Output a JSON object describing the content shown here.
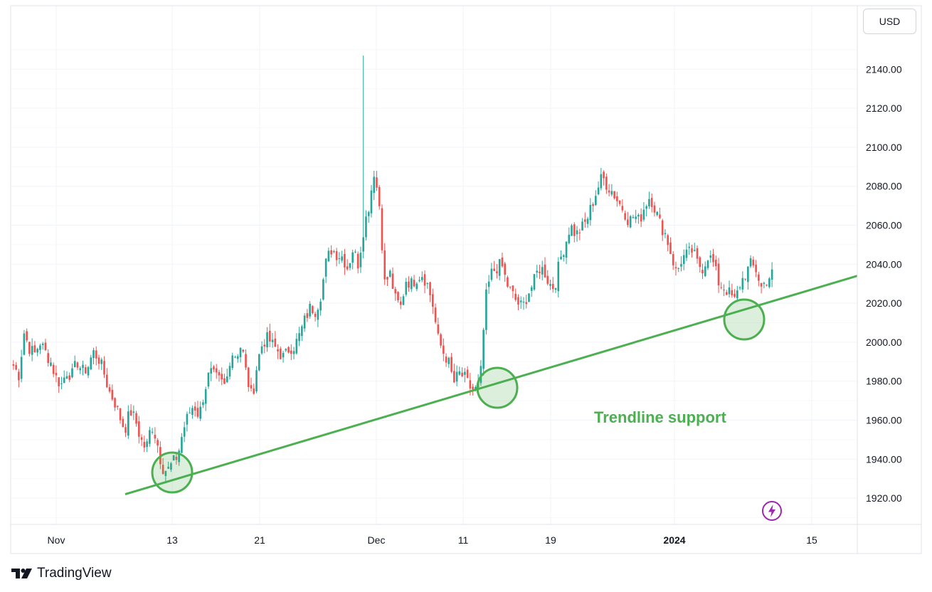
{
  "header": {
    "currency_label": "USD"
  },
  "branding": {
    "name": "TradingView",
    "logo_icon": "tradingview-logo-icon"
  },
  "colors": {
    "up": "#26a69a",
    "down": "#ef5350",
    "trendline": "#4caf50",
    "annotation_text": "#4caf50",
    "bolt": "#9c27b0",
    "grid": "#f0f3fa",
    "axis_border": "#e0e3eb"
  },
  "chart_data": {
    "type": "candlestick",
    "title": "",
    "y_axis": {
      "ticks": [
        "2140.00",
        "2120.00",
        "2100.00",
        "2080.00",
        "2060.00",
        "2040.00",
        "2020.00",
        "2000.00",
        "1980.00",
        "1960.00",
        "1940.00",
        "1920.00"
      ],
      "tick_values": [
        2140,
        2120,
        2100,
        2080,
        2060,
        2040,
        2020,
        2000,
        1980,
        1960,
        1940,
        1920
      ],
      "ylim": [
        1907,
        2161
      ]
    },
    "x_axis": {
      "labels": [
        "Nov",
        "13",
        "21",
        "Dec",
        "11",
        "19",
        "2024",
        "15"
      ],
      "bold_labels": [
        "2024"
      ]
    },
    "series_anchor_closes": [
      1988,
      1983,
      2005,
      1997,
      1994,
      2000,
      1995,
      1990,
      1982,
      1978,
      1985,
      1983,
      1990,
      1985,
      1987,
      1995,
      1992,
      1985,
      1975,
      1970,
      1962,
      1955,
      1965,
      1960,
      1950,
      1945,
      1958,
      1950,
      1936,
      1934,
      1938,
      1942,
      1955,
      1963,
      1968,
      1962,
      1975,
      1985,
      1982,
      1980,
      1977,
      1995,
      1993,
      1999,
      1982,
      1971,
      1990,
      2000,
      2002,
      1998,
      1995,
      1992,
      1997,
      1998,
      2004,
      2012,
      2018,
      2016,
      2025,
      2042,
      2048,
      2045,
      2044,
      2038,
      2048,
      2040,
      2058,
      2070,
      2088,
      2070,
      2030,
      2035,
      2022,
      2018,
      2032,
      2030,
      2033,
      2035,
      2030,
      2020,
      2002,
      1995,
      1990,
      1979,
      1984,
      1982,
      1977,
      1975,
      1980,
      2022,
      2035,
      2038,
      2040,
      2030,
      2025,
      2020,
      2018,
      2025,
      2030,
      2038,
      2037,
      2030,
      2028,
      2042,
      2050,
      2060,
      2055,
      2058,
      2062,
      2070,
      2078,
      2085,
      2080,
      2077,
      2072,
      2068,
      2062,
      2065,
      2062,
      2070,
      2075,
      2068,
      2060,
      2055,
      2045,
      2035,
      2043,
      2045,
      2047,
      2040,
      2038,
      2045,
      2040,
      2030,
      2028,
      2025,
      2021,
      2030,
      2035,
      2040,
      2037,
      2028,
      2032,
      2035
    ],
    "trendline": {
      "label": "Trendline support",
      "start": {
        "bar": 37,
        "price": 1922
      },
      "end": {
        "bar": 274,
        "price": 2034
      }
    },
    "touch_points": [
      {
        "bar": 57,
        "price": 1933
      },
      {
        "bar": 171,
        "price": 1977
      },
      {
        "bar": 256,
        "price": 2011
      }
    ],
    "spike": {
      "bar": 131,
      "high": 2147
    }
  },
  "toolbar": {
    "bolt_icon": "lightning-icon"
  }
}
